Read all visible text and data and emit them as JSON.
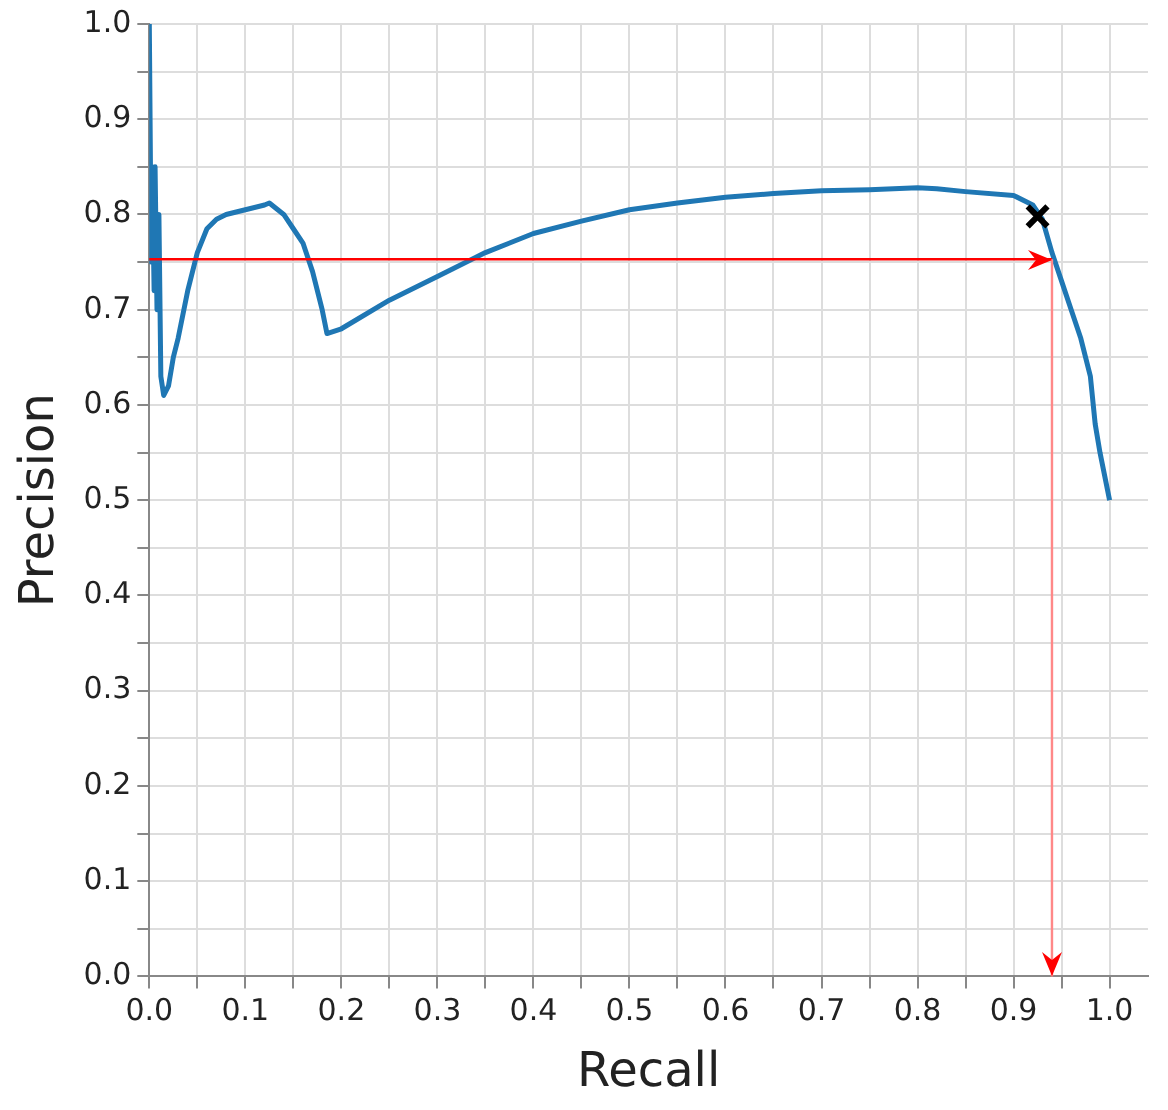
{
  "chart_data": {
    "type": "line",
    "xlabel": "Recall",
    "ylabel": "Precision",
    "xlim": [
      0,
      1.04
    ],
    "ylim": [
      0,
      1.0
    ],
    "xticks": [
      {
        "value": 0,
        "label": "0.0"
      },
      {
        "value": 0.05,
        "label": null
      },
      0.1,
      {
        "value": 0.15,
        "label": null
      },
      0.2,
      {
        "value": 0.25,
        "label": null
      },
      0.3,
      {
        "value": 0.35,
        "label": null
      },
      0.4,
      {
        "value": 0.45,
        "label": null
      },
      0.5,
      {
        "value": 0.55,
        "label": null
      },
      0.6,
      {
        "value": 0.65,
        "label": null
      },
      0.7,
      {
        "value": 0.75,
        "label": null
      },
      0.8,
      {
        "value": 0.85,
        "label": null
      },
      0.9,
      {
        "value": 0.95,
        "label": null
      },
      {
        "value": 1.0,
        "label": "1.0"
      }
    ],
    "yticks": [
      {
        "value": 0,
        "label": "0.0"
      },
      {
        "value": 0.05,
        "label": null
      },
      0.1,
      {
        "value": 0.15,
        "label": null
      },
      0.2,
      {
        "value": 0.25,
        "label": null
      },
      0.3,
      {
        "value": 0.35,
        "label": null
      },
      0.4,
      {
        "value": 0.45,
        "label": null
      },
      0.5,
      {
        "value": 0.55,
        "label": null
      },
      0.6,
      {
        "value": 0.65,
        "label": null
      },
      0.7,
      {
        "value": 0.75,
        "label": null
      },
      0.8,
      {
        "value": 0.85,
        "label": null
      },
      0.9,
      {
        "value": 0.95,
        "label": null
      },
      {
        "value": 1.0,
        "label": "1.0"
      }
    ],
    "ref_lines": [
      {
        "axis": "y",
        "value": 0.753,
        "color": "#ff0000"
      },
      {
        "axis": "x",
        "value": 0.94,
        "color": "#ff8888"
      }
    ],
    "grid": true,
    "legend": false,
    "marker": "none",
    "line_style": "solid",
    "series": [
      {
        "type": "line",
        "color": "#1f77b4",
        "x": [
          0,
          0.002,
          0.003,
          0.005,
          0.006,
          0.008,
          0.01,
          0.012,
          0.015,
          0.02,
          0.025,
          0.03,
          0.04,
          0.05,
          0.06,
          0.07,
          0.08,
          0.1,
          0.12,
          0.125,
          0.14,
          0.15,
          0.16,
          0.17,
          0.18,
          0.185,
          0.2,
          0.25,
          0.3,
          0.35,
          0.4,
          0.45,
          0.5,
          0.55,
          0.6,
          0.65,
          0.7,
          0.75,
          0.8,
          0.82,
          0.85,
          0.9,
          0.92,
          0.93,
          0.94,
          0.95,
          0.96,
          0.97,
          0.98,
          0.985,
          0.99,
          1.0
        ],
        "values": [
          1.0,
          0.75,
          0.85,
          0.72,
          0.85,
          0.7,
          0.8,
          0.63,
          0.61,
          0.62,
          0.65,
          0.67,
          0.72,
          0.76,
          0.785,
          0.795,
          0.8,
          0.805,
          0.81,
          0.812,
          0.8,
          0.785,
          0.77,
          0.74,
          0.7,
          0.675,
          0.68,
          0.71,
          0.735,
          0.76,
          0.78,
          0.793,
          0.805,
          0.812,
          0.818,
          0.822,
          0.825,
          0.826,
          0.828,
          0.827,
          0.824,
          0.82,
          0.81,
          0.795,
          0.76,
          0.73,
          0.7,
          0.67,
          0.63,
          0.58,
          0.55,
          0.5
        ]
      },
      {
        "type": "scatter",
        "color": "#000000",
        "marker": "cross",
        "x": [
          0.925
        ],
        "values": [
          0.798
        ]
      }
    ]
  }
}
